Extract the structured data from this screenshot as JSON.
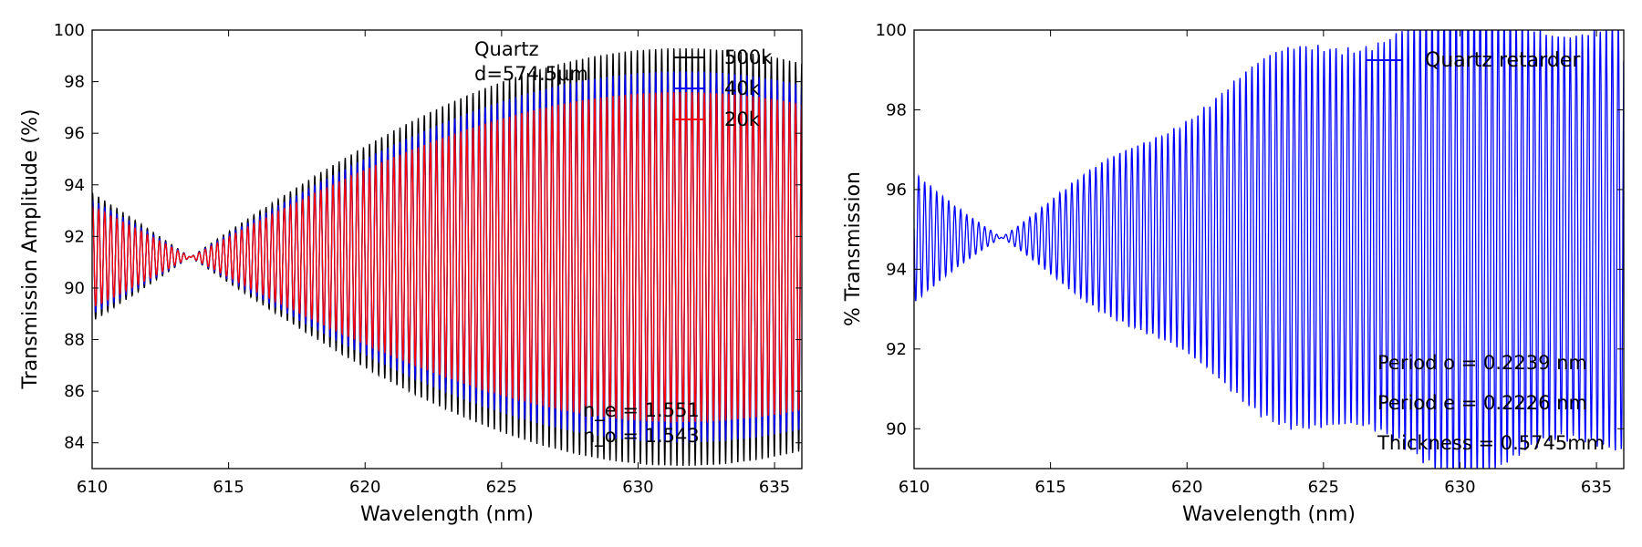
{
  "chart_data": [
    {
      "type": "line",
      "xlabel": "Wavelength (nm)",
      "ylabel": "Transmission Amplitude (%)",
      "xlim": [
        610,
        636
      ],
      "ylim": [
        83,
        100
      ],
      "xticks": [
        610,
        615,
        620,
        625,
        630,
        635
      ],
      "yticks": [
        84,
        86,
        88,
        90,
        92,
        94,
        96,
        98,
        100
      ],
      "grid": false,
      "legend_position": "top-right",
      "annotations": [
        "Quartz",
        "d=574.5μm",
        "n_e = 1.551",
        "n_o = 1.543"
      ],
      "model": {
        "center": 91.2,
        "node_wavelength": 631.6,
        "fringe_period": 0.223,
        "envelope_period": 36.0
      },
      "series": [
        {
          "name": "500k",
          "color": "#000000",
          "amplitude": 8.1
        },
        {
          "name": "40k",
          "color": "#0000ff",
          "amplitude": 7.2
        },
        {
          "name": "20k",
          "color": "#ff0000",
          "amplitude": 6.4
        }
      ]
    },
    {
      "type": "line",
      "xlabel": "Wavelength (nm)",
      "ylabel": "% Transmission",
      "xlim": [
        610,
        636
      ],
      "ylim": [
        89,
        100
      ],
      "xticks": [
        610,
        615,
        620,
        625,
        630,
        635
      ],
      "yticks": [
        90,
        92,
        94,
        96,
        98,
        100
      ],
      "grid": false,
      "legend_position": "top-right",
      "annotations": [
        "Period o = 0.2239 nm",
        "Period e = 0.2226 nm",
        "Thickness = 0.5745mm"
      ],
      "model": {
        "center": 94.8,
        "node_wavelength": 631.2,
        "fringe_period": 0.22,
        "envelope_period": 36.0,
        "amplitude": 5.6
      },
      "series": [
        {
          "name": "Quartz retarder",
          "color": "#0000ff"
        }
      ]
    }
  ]
}
